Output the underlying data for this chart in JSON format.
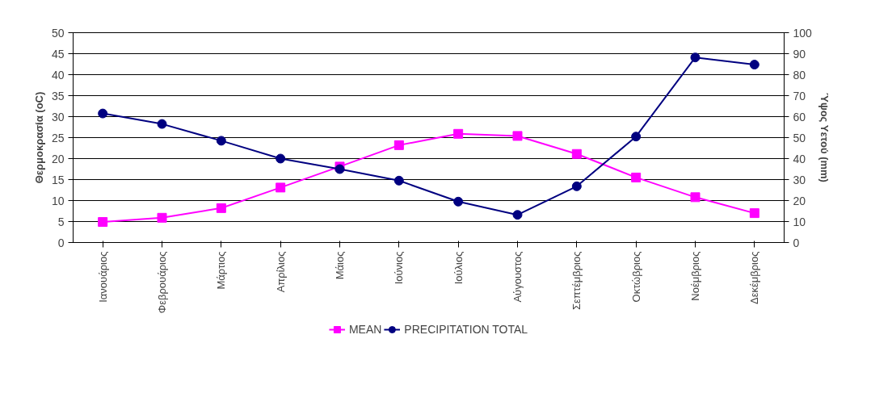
{
  "chart_data": {
    "type": "line",
    "categories": [
      "Ιανουάριος",
      "Φεβρουάριος",
      "Μάρτιος",
      "Απρίλιος",
      "Μάιος",
      "Ιούνιος",
      "Ιούλιος",
      "Αύγουστος",
      "Σεπτέμβριος",
      "Οκτώβριος",
      "Νοέμβριος",
      "Δεκέμβριος"
    ],
    "ylabel": "Θερμοκρασία (oC)",
    "y2label": "Ύψος Υετού (mm)",
    "ylim": [
      0,
      50
    ],
    "yticks": [
      0,
      5,
      10,
      15,
      20,
      25,
      30,
      35,
      40,
      45,
      50
    ],
    "y2lim": [
      0,
      100
    ],
    "y2ticks": [
      0,
      10,
      20,
      30,
      40,
      50,
      60,
      70,
      80,
      90,
      100
    ],
    "grid": "y",
    "legend": "bottom",
    "series": [
      {
        "name": "MEAN",
        "color": "#ff00ff",
        "marker": "square",
        "values": [
          4.9,
          5.9,
          8.2,
          13.1,
          18.1,
          23.2,
          25.9,
          25.4,
          21.1,
          15.5,
          10.8,
          7.0
        ]
      },
      {
        "name": "PRECIPITATION TOTAL",
        "color": "#000080",
        "marker": "circle",
        "axis": "y2",
        "values": [
          61.5,
          56.5,
          48.5,
          40,
          35,
          29.5,
          19.5,
          13.2,
          26.8,
          50.5,
          88.2,
          84.8
        ]
      }
    ]
  }
}
